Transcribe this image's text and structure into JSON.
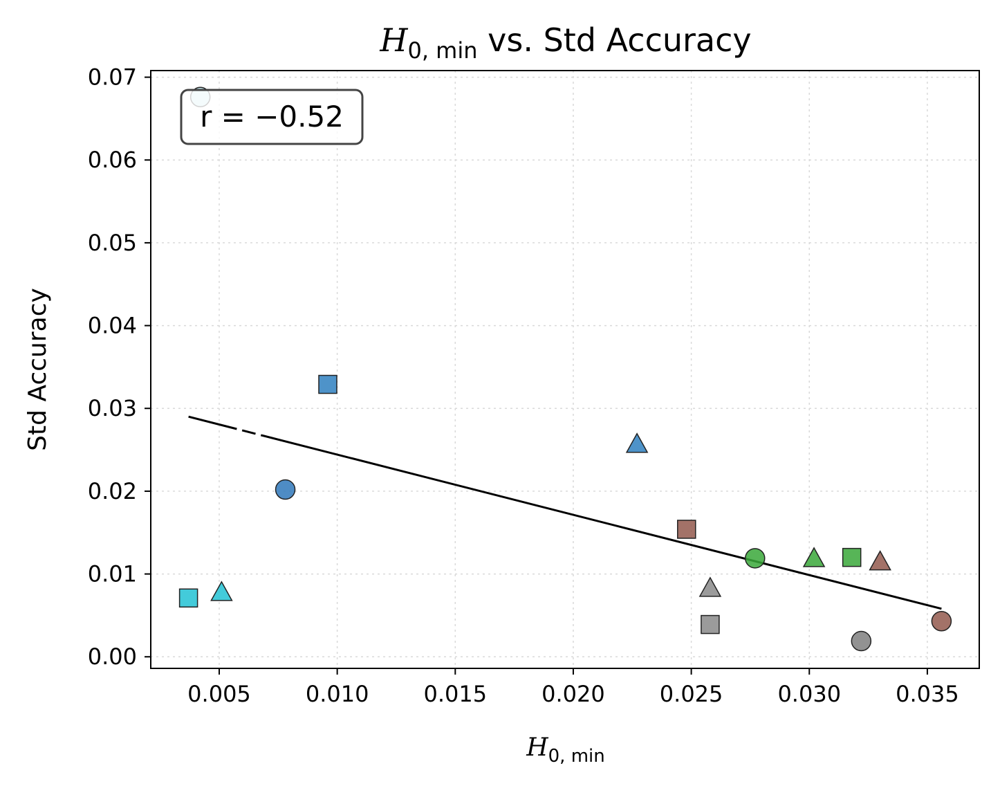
{
  "chart_data": {
    "type": "scatter",
    "title_var": "H",
    "title_sub": "0, min",
    "title_rest": " vs. Std Accuracy",
    "xlabel_var": "H",
    "xlabel_sub": "0, min",
    "ylabel": "Std Accuracy",
    "xlim": [
      0.0021,
      0.0372
    ],
    "ylim": [
      -0.0014,
      0.0708
    ],
    "xticks": [
      "0.005",
      "0.010",
      "0.015",
      "0.020",
      "0.025",
      "0.030",
      "0.035"
    ],
    "yticks": [
      "0.00",
      "0.01",
      "0.02",
      "0.03",
      "0.04",
      "0.05",
      "0.06",
      "0.07"
    ],
    "grid": true,
    "annotation": "r = −0.52",
    "annotation_position": "top-left",
    "fit_line": {
      "x": [
        0.0037,
        0.0356
      ],
      "y": [
        0.029,
        0.0058
      ]
    },
    "points": [
      {
        "x": 0.0042,
        "y": 0.0676,
        "color": "#bde6ef",
        "marker": "circle"
      },
      {
        "x": 0.0078,
        "y": 0.0202,
        "color": "#2f78bb",
        "marker": "circle"
      },
      {
        "x": 0.0096,
        "y": 0.0329,
        "color": "#2f80c0",
        "marker": "square"
      },
      {
        "x": 0.0227,
        "y": 0.0257,
        "color": "#2f80c0",
        "marker": "triangle"
      },
      {
        "x": 0.0037,
        "y": 0.0071,
        "color": "#22c2d3",
        "marker": "square"
      },
      {
        "x": 0.0051,
        "y": 0.0078,
        "color": "#22c2d3",
        "marker": "triangle"
      },
      {
        "x": 0.0248,
        "y": 0.0154,
        "color": "#93594e",
        "marker": "square"
      },
      {
        "x": 0.0277,
        "y": 0.0119,
        "color": "#3aa83a",
        "marker": "circle"
      },
      {
        "x": 0.0302,
        "y": 0.0119,
        "color": "#3aa83a",
        "marker": "triangle"
      },
      {
        "x": 0.0318,
        "y": 0.012,
        "color": "#3aa83a",
        "marker": "square"
      },
      {
        "x": 0.033,
        "y": 0.0115,
        "color": "#93594e",
        "marker": "triangle"
      },
      {
        "x": 0.0258,
        "y": 0.0083,
        "color": "#8a8a8a",
        "marker": "triangle"
      },
      {
        "x": 0.0258,
        "y": 0.0039,
        "color": "#8a8a8a",
        "marker": "square"
      },
      {
        "x": 0.0322,
        "y": 0.0019,
        "color": "#7f7f7f",
        "marker": "circle"
      },
      {
        "x": 0.0356,
        "y": 0.0043,
        "color": "#93594e",
        "marker": "circle"
      }
    ]
  }
}
